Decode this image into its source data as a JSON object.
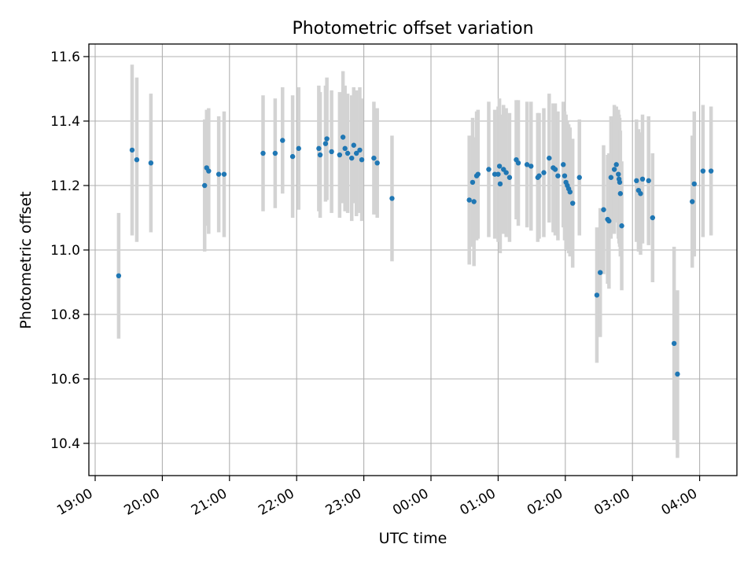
{
  "chart_data": {
    "type": "scatter",
    "title": "Photometric offset variation",
    "xlabel": "UTC time",
    "ylabel": "Photometric offset",
    "x_ticks": [
      "19:00",
      "20:00",
      "21:00",
      "22:00",
      "23:00",
      "00:00",
      "01:00",
      "02:00",
      "03:00",
      "04:00"
    ],
    "y_ticks": [
      "10.4",
      "10.6",
      "10.8",
      "11.0",
      "11.2",
      "11.4",
      "11.6"
    ],
    "x_unit": "hours after 19:00 UTC",
    "xlim": [
      -0.1,
      9.6
    ],
    "ylim": [
      10.3,
      11.64
    ],
    "grid": true,
    "colors": {
      "point": "#1f77b4",
      "errorbar": "#d3d3d3",
      "grid": "#b0b0b0"
    },
    "points": [
      [
        0.35,
        10.92,
        0.195
      ],
      [
        0.55,
        11.31,
        0.265
      ],
      [
        0.62,
        11.28,
        0.255
      ],
      [
        0.83,
        11.27,
        0.215
      ],
      [
        1.63,
        11.2,
        0.205
      ],
      [
        1.66,
        11.255,
        0.18
      ],
      [
        1.69,
        11.245,
        0.195
      ],
      [
        1.84,
        11.235,
        0.18
      ],
      [
        1.92,
        11.235,
        0.195
      ],
      [
        2.5,
        11.3,
        0.18
      ],
      [
        2.68,
        11.3,
        0.17
      ],
      [
        2.79,
        11.34,
        0.165
      ],
      [
        2.94,
        11.29,
        0.19
      ],
      [
        3.03,
        11.315,
        0.19
      ],
      [
        3.33,
        11.315,
        0.195
      ],
      [
        3.35,
        11.295,
        0.195
      ],
      [
        3.43,
        11.33,
        0.18
      ],
      [
        3.45,
        11.345,
        0.19
      ],
      [
        3.52,
        11.305,
        0.19
      ],
      [
        3.64,
        11.295,
        0.195
      ],
      [
        3.69,
        11.35,
        0.205
      ],
      [
        3.72,
        11.315,
        0.195
      ],
      [
        3.76,
        11.3,
        0.185
      ],
      [
        3.82,
        11.285,
        0.195
      ],
      [
        3.85,
        11.325,
        0.18
      ],
      [
        3.89,
        11.3,
        0.195
      ],
      [
        3.94,
        11.31,
        0.195
      ],
      [
        3.97,
        11.28,
        0.19
      ],
      [
        4.15,
        11.285,
        0.175
      ],
      [
        4.2,
        11.27,
        0.17
      ],
      [
        4.42,
        11.16,
        0.195
      ],
      [
        5.57,
        11.155,
        0.2
      ],
      [
        5.62,
        11.21,
        0.2
      ],
      [
        5.64,
        11.15,
        0.2
      ],
      [
        5.68,
        11.23,
        0.2
      ],
      [
        5.7,
        11.235,
        0.2
      ],
      [
        5.86,
        11.25,
        0.21
      ],
      [
        5.95,
        11.235,
        0.2
      ],
      [
        6.0,
        11.235,
        0.21
      ],
      [
        6.02,
        11.26,
        0.21
      ],
      [
        6.03,
        11.205,
        0.215
      ],
      [
        6.08,
        11.25,
        0.2
      ],
      [
        6.12,
        11.24,
        0.2
      ],
      [
        6.17,
        11.225,
        0.2
      ],
      [
        6.27,
        11.28,
        0.185
      ],
      [
        6.3,
        11.27,
        0.195
      ],
      [
        6.43,
        11.265,
        0.195
      ],
      [
        6.49,
        11.26,
        0.2
      ],
      [
        6.59,
        11.225,
        0.2
      ],
      [
        6.61,
        11.23,
        0.195
      ],
      [
        6.68,
        11.24,
        0.2
      ],
      [
        6.76,
        11.285,
        0.2
      ],
      [
        6.82,
        11.255,
        0.2
      ],
      [
        6.85,
        11.25,
        0.205
      ],
      [
        6.89,
        11.23,
        0.2
      ],
      [
        6.97,
        11.265,
        0.195
      ],
      [
        6.99,
        11.23,
        0.2
      ],
      [
        7.01,
        11.21,
        0.21
      ],
      [
        7.03,
        11.2,
        0.2
      ],
      [
        7.05,
        11.19,
        0.2
      ],
      [
        7.07,
        11.18,
        0.2
      ],
      [
        7.11,
        11.145,
        0.2
      ],
      [
        7.21,
        11.225,
        0.18
      ],
      [
        7.47,
        10.86,
        0.21
      ],
      [
        7.52,
        10.93,
        0.2
      ],
      [
        7.57,
        11.125,
        0.2
      ],
      [
        7.63,
        11.095,
        0.2
      ],
      [
        7.65,
        11.09,
        0.21
      ],
      [
        7.68,
        11.225,
        0.19
      ],
      [
        7.73,
        11.25,
        0.2
      ],
      [
        7.76,
        11.265,
        0.18
      ],
      [
        7.79,
        11.235,
        0.2
      ],
      [
        7.8,
        11.22,
        0.2
      ],
      [
        7.81,
        11.21,
        0.2
      ],
      [
        7.82,
        11.175,
        0.195
      ],
      [
        7.84,
        11.075,
        0.2
      ],
      [
        8.06,
        11.215,
        0.19
      ],
      [
        8.09,
        11.185,
        0.19
      ],
      [
        8.12,
        11.175,
        0.19
      ],
      [
        8.15,
        11.22,
        0.2
      ],
      [
        8.24,
        11.215,
        0.2
      ],
      [
        8.3,
        11.1,
        0.2
      ],
      [
        8.62,
        10.71,
        0.3
      ],
      [
        8.67,
        10.615,
        0.26
      ],
      [
        8.89,
        11.15,
        0.205
      ],
      [
        8.92,
        11.205,
        0.225
      ],
      [
        9.05,
        11.245,
        0.205
      ],
      [
        9.17,
        11.245,
        0.2
      ]
    ]
  }
}
